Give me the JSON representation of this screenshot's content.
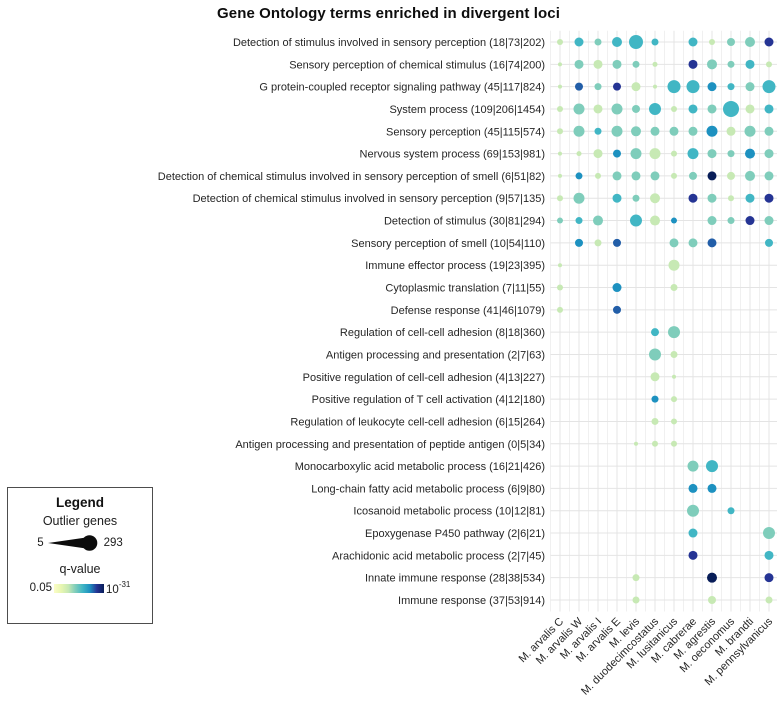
{
  "chart_data": {
    "type": "scatter",
    "subtype": "bubble-matrix",
    "title": "Gene Ontology terms enriched in divergent loci",
    "x_categories": [
      "M. arvalis C",
      "M. arvalis W",
      "M. arvalis I",
      "M. arvalis E",
      "M. levis",
      "M. duodecimcostatus",
      "M. lusitanicus",
      "M. cabrerae",
      "M. agrestis",
      "M. oeconomus",
      "M. brandti",
      "M. pennsylvanicus"
    ],
    "y_categories": [
      "Detection of stimulus involved in sensory perception (18|73|202)",
      "Sensory perception of chemical stimulus (16|74|200)",
      "G protein-coupled receptor signaling pathway (45|117|824)",
      "System process (109|206|1454)",
      "Sensory perception (45|115|574)",
      "Nervous system process (69|153|981)",
      "Detection of chemical stimulus involved in sensory perception of smell (6|51|82)",
      "Detection of chemical stimulus involved in sensory perception (9|57|135)",
      "Detection of stimulus (30|81|294)",
      "Sensory perception of smell (10|54|110)",
      "Immune effector process (19|23|395)",
      "Cytoplasmic translation (7|11|55)",
      "Defense response (41|46|1079)",
      "Regulation of cell-cell adhesion (8|18|360)",
      "Antigen processing and presentation (2|7|63)",
      "Positive regulation of cell-cell adhesion (4|13|227)",
      "Positive regulation of T cell activation (4|12|180)",
      "Regulation of leukocyte cell-cell adhesion (6|15|264)",
      "Antigen processing and presentation of peptide antigen (0|5|34)",
      "Monocarboxylic acid metabolic process (16|21|426)",
      "Long-chain fatty acid metabolic process (6|9|80)",
      "Icosanoid metabolic process (10|12|81)",
      "Epoxygenase P450 pathway (2|6|21)",
      "Arachidonic acid metabolic process (2|7|45)",
      "Innate immune response (28|38|534)",
      "Immune response (37|53|914)"
    ],
    "palette": {
      "L": "#c7e9b4",
      "G": "#7fcdbb",
      "T": "#41b6c4",
      "C": "#1d91c0",
      "B": "#225ea8",
      "N": "#253494",
      "D": "#081d58"
    },
    "matrix": [
      [
        [
          3,
          "L"
        ],
        [
          4.5,
          "T"
        ],
        [
          3.5,
          "G"
        ],
        [
          5,
          "T"
        ],
        [
          7,
          "T"
        ],
        [
          3.5,
          "T"
        ],
        null,
        [
          4.5,
          "T"
        ],
        [
          3,
          "L"
        ],
        [
          4,
          "G"
        ],
        [
          5,
          "G"
        ],
        [
          4.5,
          "N"
        ]
      ],
      [
        [
          2,
          "L"
        ],
        [
          4.5,
          "G"
        ],
        [
          4.5,
          "L"
        ],
        [
          4.5,
          "G"
        ],
        [
          3.5,
          "G"
        ],
        [
          2.5,
          "L"
        ],
        null,
        [
          4.5,
          "N"
        ],
        [
          5,
          "G"
        ],
        [
          3.5,
          "G"
        ],
        [
          4.5,
          "T"
        ],
        [
          3,
          "L"
        ]
      ],
      [
        [
          2,
          "L"
        ],
        [
          4,
          "B"
        ],
        [
          3.5,
          "G"
        ],
        [
          4,
          "N"
        ],
        [
          4.5,
          "L"
        ],
        [
          2,
          "L"
        ],
        [
          6.5,
          "T"
        ],
        [
          6.5,
          "T"
        ],
        [
          4.5,
          "C"
        ],
        [
          3.5,
          "T"
        ],
        [
          4.5,
          "G"
        ],
        [
          6.5,
          "T"
        ]
      ],
      [
        [
          3,
          "L"
        ],
        [
          5.5,
          "G"
        ],
        [
          4.5,
          "L"
        ],
        [
          5.5,
          "G"
        ],
        [
          4,
          "G"
        ],
        [
          6,
          "T"
        ],
        [
          3,
          "L"
        ],
        [
          4.5,
          "T"
        ],
        [
          4.5,
          "G"
        ],
        [
          8,
          "T"
        ],
        [
          4.5,
          "L"
        ],
        [
          4.5,
          "T"
        ]
      ],
      [
        [
          3,
          "L"
        ],
        [
          5.5,
          "G"
        ],
        [
          3.5,
          "T"
        ],
        [
          5.5,
          "G"
        ],
        [
          5,
          "G"
        ],
        [
          4.5,
          "G"
        ],
        [
          4.5,
          "G"
        ],
        [
          4.5,
          "G"
        ],
        [
          5.5,
          "C"
        ],
        [
          4.5,
          "L"
        ],
        [
          5.5,
          "G"
        ],
        [
          4.5,
          "G"
        ]
      ],
      [
        [
          2,
          "L"
        ],
        [
          2.5,
          "L"
        ],
        [
          4.5,
          "L"
        ],
        [
          4,
          "C"
        ],
        [
          5.5,
          "G"
        ],
        [
          5.5,
          "L"
        ],
        [
          3,
          "L"
        ],
        [
          5.5,
          "T"
        ],
        [
          4.5,
          "G"
        ],
        [
          3.5,
          "G"
        ],
        [
          5,
          "C"
        ],
        [
          4.5,
          "G"
        ]
      ],
      [
        [
          2,
          "L"
        ],
        [
          3.5,
          "C"
        ],
        [
          3,
          "L"
        ],
        [
          4.5,
          "G"
        ],
        [
          4.5,
          "G"
        ],
        [
          4.5,
          "G"
        ],
        [
          3,
          "L"
        ],
        [
          4,
          "G"
        ],
        [
          4.5,
          "D"
        ],
        [
          4,
          "L"
        ],
        [
          5,
          "G"
        ],
        [
          4.5,
          "G"
        ]
      ],
      [
        [
          3,
          "L"
        ],
        [
          5.5,
          "G"
        ],
        null,
        [
          4.5,
          "T"
        ],
        [
          3.5,
          "G"
        ],
        [
          5,
          "L"
        ],
        null,
        [
          4.5,
          "N"
        ],
        [
          4.5,
          "G"
        ],
        [
          3,
          "L"
        ],
        [
          4.5,
          "T"
        ],
        [
          4.5,
          "N"
        ]
      ],
      [
        [
          3,
          "G"
        ],
        [
          3.5,
          "T"
        ],
        [
          5,
          "G"
        ],
        null,
        [
          6,
          "T"
        ],
        [
          5,
          "L"
        ],
        [
          3,
          "C"
        ],
        null,
        [
          4.5,
          "G"
        ],
        [
          3.5,
          "G"
        ],
        [
          4.5,
          "N"
        ],
        [
          4.5,
          "G"
        ]
      ],
      [
        null,
        [
          4,
          "C"
        ],
        [
          3.5,
          "L"
        ],
        [
          4,
          "B"
        ],
        null,
        null,
        [
          4.5,
          "G"
        ],
        [
          4.5,
          "G"
        ],
        [
          4.5,
          "B"
        ],
        null,
        null,
        [
          4,
          "T"
        ]
      ],
      [
        [
          2,
          "L"
        ],
        null,
        null,
        null,
        null,
        null,
        [
          5.5,
          "L"
        ],
        null,
        null,
        null,
        null,
        null
      ],
      [
        [
          3,
          "L"
        ],
        null,
        null,
        [
          4.5,
          "C"
        ],
        null,
        null,
        [
          3.5,
          "L"
        ],
        null,
        null,
        null,
        null,
        null
      ],
      [
        [
          3,
          "L"
        ],
        null,
        null,
        [
          4,
          "B"
        ],
        null,
        null,
        null,
        null,
        null,
        null,
        null,
        null
      ],
      [
        null,
        null,
        null,
        null,
        null,
        [
          4,
          "T"
        ],
        [
          6,
          "G"
        ],
        null,
        null,
        null,
        null,
        null
      ],
      [
        null,
        null,
        null,
        null,
        null,
        [
          6,
          "G"
        ],
        [
          3.5,
          "L"
        ],
        null,
        null,
        null,
        null,
        null
      ],
      [
        null,
        null,
        null,
        null,
        null,
        [
          4.5,
          "L"
        ],
        [
          2,
          "L"
        ],
        null,
        null,
        null,
        null,
        null
      ],
      [
        null,
        null,
        null,
        null,
        null,
        [
          3.5,
          "C"
        ],
        [
          3,
          "L"
        ],
        null,
        null,
        null,
        null,
        null
      ],
      [
        null,
        null,
        null,
        null,
        null,
        [
          3.5,
          "L"
        ],
        [
          3,
          "L"
        ],
        null,
        null,
        null,
        null,
        null
      ],
      [
        null,
        null,
        null,
        null,
        [
          2,
          "L"
        ],
        [
          3,
          "L"
        ],
        [
          3,
          "L"
        ],
        null,
        null,
        null,
        null,
        null
      ],
      [
        null,
        null,
        null,
        null,
        null,
        null,
        null,
        [
          5.5,
          "G"
        ],
        [
          6,
          "T"
        ],
        null,
        null,
        null
      ],
      [
        null,
        null,
        null,
        null,
        null,
        null,
        null,
        [
          4.5,
          "C"
        ],
        [
          4.5,
          "C"
        ],
        null,
        null,
        null
      ],
      [
        null,
        null,
        null,
        null,
        null,
        null,
        null,
        [
          6,
          "G"
        ],
        null,
        [
          3.5,
          "T"
        ],
        null,
        null
      ],
      [
        null,
        null,
        null,
        null,
        null,
        null,
        null,
        [
          4.5,
          "T"
        ],
        null,
        null,
        null,
        [
          6,
          "G"
        ]
      ],
      [
        null,
        null,
        null,
        null,
        null,
        null,
        null,
        [
          4.5,
          "N"
        ],
        null,
        null,
        null,
        [
          4.5,
          "T"
        ]
      ],
      [
        null,
        null,
        null,
        null,
        [
          3.5,
          "L"
        ],
        null,
        null,
        null,
        [
          5,
          "D"
        ],
        null,
        null,
        [
          4.5,
          "N"
        ]
      ],
      [
        null,
        null,
        null,
        null,
        [
          3.5,
          "L"
        ],
        null,
        null,
        null,
        [
          4,
          "L"
        ],
        null,
        null,
        [
          3.5,
          "L"
        ]
      ]
    ],
    "legend": {
      "title": "Legend",
      "size_label": "Outlier genes",
      "size_min": "5",
      "size_max": "293",
      "color_label": "q-value",
      "color_min": "0.05",
      "color_max_base": "10",
      "color_max_exp": "-31",
      "gradient": [
        "#fbfdc7",
        "#e8f6b1",
        "#c7e9b4",
        "#7fcdbb",
        "#41b6c4",
        "#1d91c0",
        "#253494",
        "#081d58"
      ]
    }
  }
}
